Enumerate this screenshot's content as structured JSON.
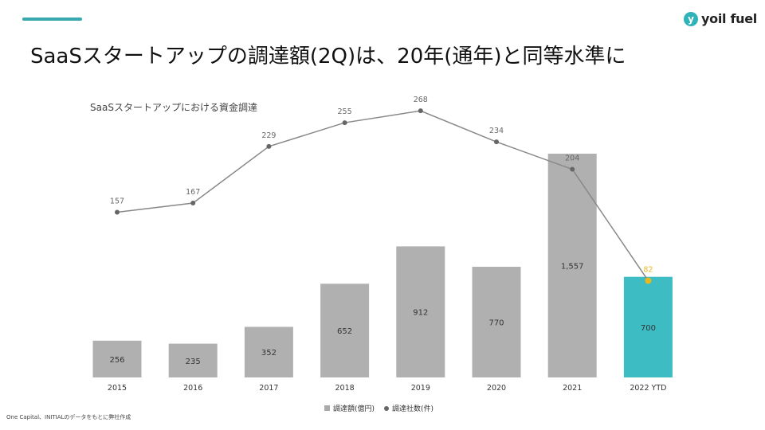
{
  "header": {
    "title": "SaaSスタートアップの調達額(2Q)は、20年(通年)と同等水準に",
    "logo_mark": "y",
    "logo_text": "yoil fuel",
    "accent_color": "#3aa8b0"
  },
  "source": "One Capital、INITIALのデータをもとに弊社作成",
  "chart_data": {
    "type": "bar",
    "title": "SaaSスタートアップにおける資金調達",
    "categories": [
      "2015",
      "2016",
      "2017",
      "2018",
      "2019",
      "2020",
      "2021",
      "2022 YTD"
    ],
    "series": [
      {
        "name": "調達額(億円)",
        "type": "bar",
        "values": [
          256,
          235,
          352,
          652,
          912,
          770,
          1557,
          700
        ],
        "value_labels": [
          "256",
          "235",
          "352",
          "652",
          "912",
          "770",
          "1,557",
          "700"
        ],
        "color": "#b0b0b0",
        "highlight_color": "#3dbcc4"
      },
      {
        "name": "調達社数(件)",
        "type": "line",
        "values": [
          157,
          167,
          229,
          255,
          268,
          234,
          204,
          82
        ],
        "value_labels": [
          "157",
          "167",
          "229",
          "255",
          "268",
          "234",
          "204",
          "82"
        ],
        "color": "#888888",
        "highlight_color": "#e8b81e"
      }
    ],
    "grid": false,
    "legend_position": "bottom-center"
  }
}
